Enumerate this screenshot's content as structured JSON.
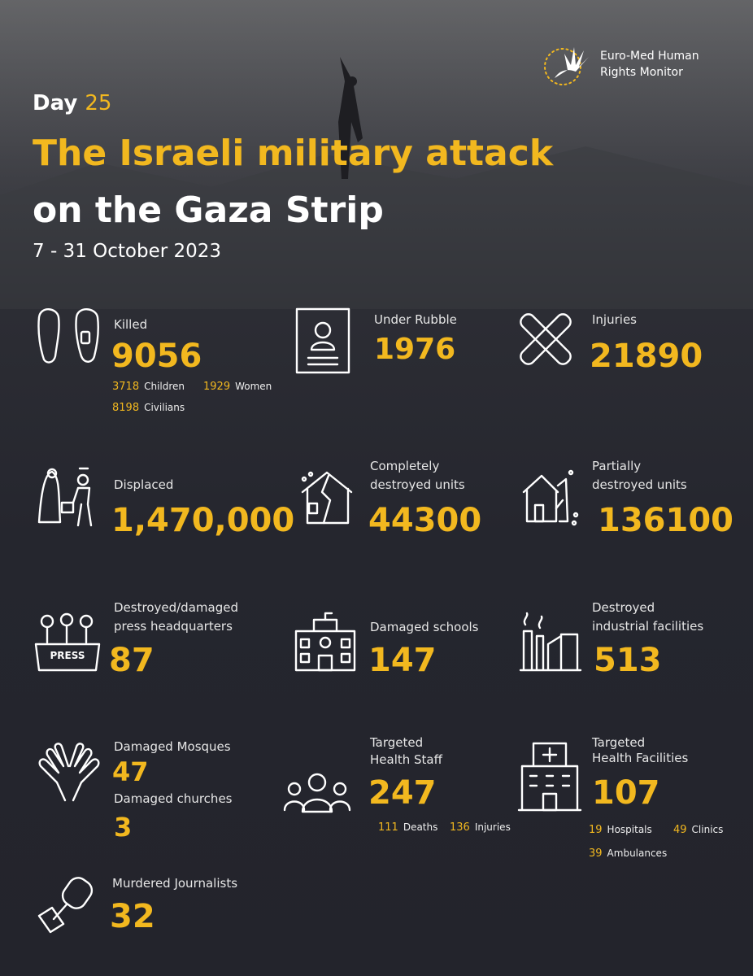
{
  "header": {
    "org_line1": "Euro-Med Human",
    "org_line2": "Rights Monitor",
    "day_label": "Day",
    "day": "25",
    "title_line1": "The Israeli military attack",
    "title_line2": "on the Gaza Strip",
    "dates": "7 - 31 October 2023"
  },
  "icon_press_text": "PRESS",
  "stats": [
    {
      "label": [
        "Killed"
      ],
      "value": "9056",
      "breakdown": [
        {
          "value": "3718",
          "label": "Children"
        },
        {
          "value": "1929",
          "label": "Women"
        },
        {
          "value": "8198",
          "label": "Civilians"
        }
      ]
    },
    {
      "label": [
        "Under Rubble"
      ],
      "value": "1976"
    },
    {
      "label": [
        "Injuries"
      ],
      "value": "21890"
    },
    {
      "label": [
        "Displaced"
      ],
      "value": "1,470,000"
    },
    {
      "label": [
        "Completely",
        "destroyed units"
      ],
      "value": "44300"
    },
    {
      "label": [
        "Partially",
        "destroyed units"
      ],
      "value": "136100"
    },
    {
      "label": [
        "Destroyed/damaged",
        "press headquarters"
      ],
      "value": "87"
    },
    {
      "label": [
        "Damaged schools"
      ],
      "value": "147"
    },
    {
      "label": [
        "Destroyed",
        "industrial facilities"
      ],
      "value": "513"
    },
    {
      "label": [
        "Damaged Mosques"
      ],
      "value": "47"
    },
    {
      "label": [
        "Damaged churches"
      ],
      "value": "3"
    },
    {
      "label": [
        "Targeted",
        "Health Staff"
      ],
      "value": "247",
      "breakdown": [
        {
          "value": "111",
          "label": "Deaths"
        },
        {
          "value": "136",
          "label": "Injuries"
        }
      ]
    },
    {
      "label": [
        "Targeted",
        "Health Facilities"
      ],
      "value": "107",
      "breakdown": [
        {
          "value": "19",
          "label": "Hospitals"
        },
        {
          "value": "49",
          "label": "Clinics"
        },
        {
          "value": "39",
          "label": "Ambulances"
        }
      ]
    },
    {
      "label": [
        "Murdered Journalists"
      ],
      "value": "32"
    }
  ]
}
